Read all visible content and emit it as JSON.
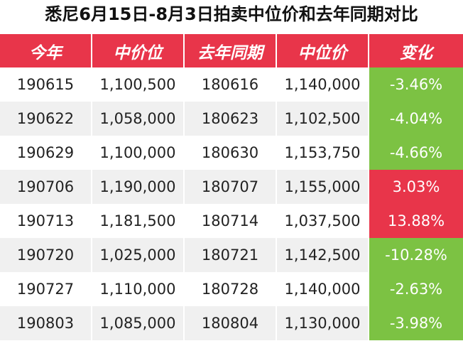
{
  "title": "悉尼6月15日-8月3日拍卖中位价和去年同期对比",
  "colors": {
    "header": "#e8354a",
    "negative": "#7cc243",
    "positive": "#e8354a"
  },
  "chart_data": {
    "type": "table",
    "title": "悉尼6月15日-8月3日拍卖中位价和去年同期对比",
    "columns": [
      "今年",
      "中价位",
      "去年同期",
      "中位价",
      "变化"
    ],
    "rows": [
      [
        "190615",
        "1,100,500",
        "180616",
        "1,140,000",
        "-3.46%"
      ],
      [
        "190622",
        "1,058,000",
        "180623",
        "1,102,500",
        "-4.04%"
      ],
      [
        "190629",
        "1,100,000",
        "180630",
        "1,153,750",
        "-4.66%"
      ],
      [
        "190706",
        "1,190,000",
        "180707",
        "1,155,000",
        "3.03%"
      ],
      [
        "190713",
        "1,181,500",
        "180714",
        "1,037,500",
        "13.88%"
      ],
      [
        "190720",
        "1,025,000",
        "180721",
        "1,142,500",
        "-10.28%"
      ],
      [
        "190727",
        "1,110,000",
        "180728",
        "1,140,000",
        "-2.63%"
      ],
      [
        "190803",
        "1,085,000",
        "180804",
        "1,130,000",
        "-3.98%"
      ]
    ]
  }
}
